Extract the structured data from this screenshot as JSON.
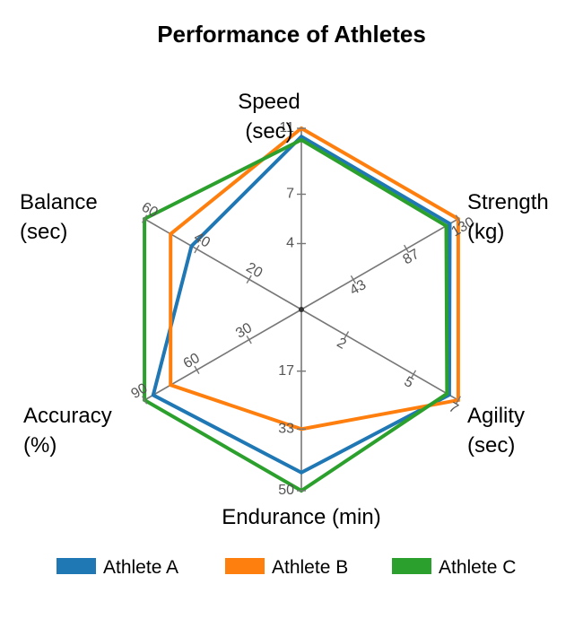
{
  "chart_data": {
    "type": "radar",
    "title": "Performance of Athletes",
    "axes": [
      {
        "label_lines": [
          "Speed",
          "(sec)"
        ],
        "max": 11,
        "ticks": [
          4,
          7,
          11
        ]
      },
      {
        "label_lines": [
          "Strength",
          "(kg)"
        ],
        "max": 130,
        "ticks": [
          43,
          87,
          130
        ]
      },
      {
        "label_lines": [
          "Agility",
          "(sec)"
        ],
        "max": 7,
        "ticks": [
          2,
          5,
          7
        ]
      },
      {
        "label_lines": [
          "Endurance (min)"
        ],
        "max": 50,
        "ticks": [
          17,
          33,
          50
        ]
      },
      {
        "label_lines": [
          "Accuracy",
          "(%)"
        ],
        "max": 90,
        "ticks": [
          30,
          60,
          90
        ]
      },
      {
        "label_lines": [
          "Balance",
          "(sec)"
        ],
        "max": 60,
        "ticks": [
          20,
          40,
          60
        ]
      }
    ],
    "series": [
      {
        "name": "Athlete A",
        "color": "#1f77b4",
        "values": [
          10.5,
          123,
          6.6,
          45,
          85,
          42
        ]
      },
      {
        "name": "Athlete B",
        "color": "#ff7f0e",
        "values": [
          11,
          130,
          7,
          33,
          75,
          50
        ]
      },
      {
        "name": "Athlete C",
        "color": "#2ca02c",
        "values": [
          10.3,
          120,
          6.5,
          50,
          90,
          60
        ]
      }
    ],
    "legend_position": "bottom",
    "grid": true
  }
}
